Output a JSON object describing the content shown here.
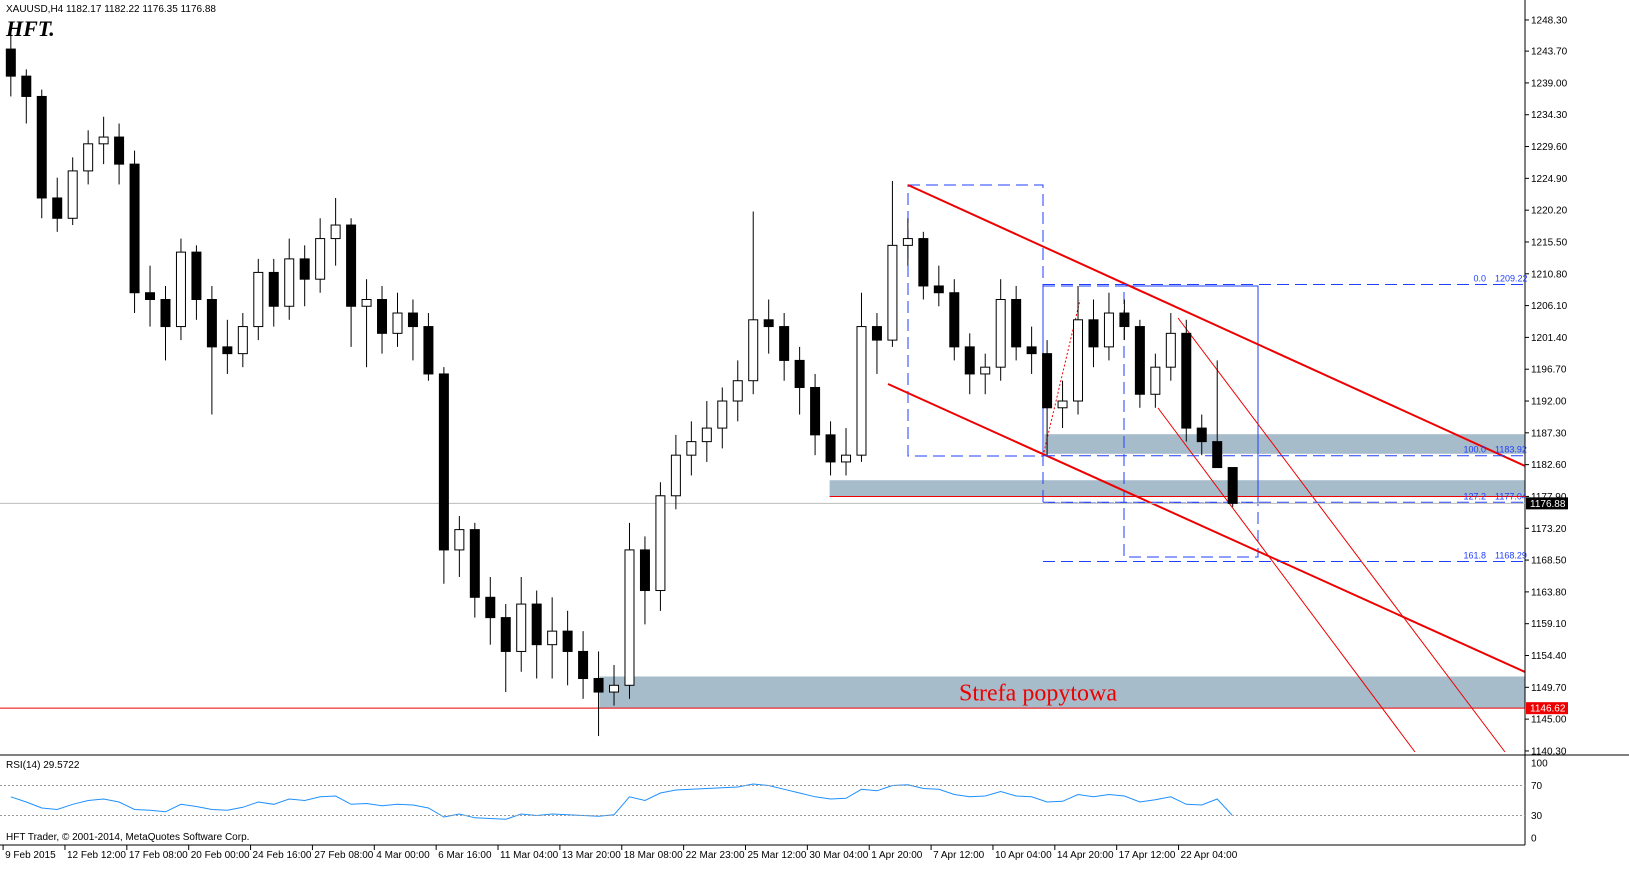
{
  "header": {
    "symbol_info": "XAUUSD,H4  1182.17 1182.22 1176.35 1176.88",
    "logo": "HFT."
  },
  "chart_data": [
    {
      "type": "candlestick",
      "x": [
        0.125,
        0.375,
        0.625,
        0.875,
        1.125,
        1.375,
        1.625,
        1.875,
        2.125,
        2.375,
        2.625,
        2.875,
        3.125,
        3.375,
        3.625,
        3.875,
        4.125,
        4.375,
        4.625,
        4.875,
        5.125,
        5.375,
        5.625,
        5.875,
        6.125,
        6.375,
        6.625,
        6.875,
        7.125,
        7.375,
        7.625,
        7.875,
        8.125,
        8.375,
        8.625,
        8.875,
        9.125,
        9.375,
        9.625,
        9.875,
        10.125,
        10.375,
        10.625,
        10.875,
        11.125,
        11.375,
        11.625,
        11.875,
        12.125,
        12.375,
        12.625,
        12.875,
        13.125,
        13.375,
        13.625,
        13.875,
        14.125,
        14.375,
        14.625,
        14.875,
        15.125,
        15.375,
        15.625,
        15.875,
        16.125,
        16.375,
        16.625,
        16.875,
        17.125,
        17.375,
        17.625,
        17.875,
        18.125,
        18.375,
        18.625,
        18.875,
        19.125,
        19.375,
        19.625,
        19.875
      ],
      "ohlc": [
        [
          1244,
          1247,
          1237,
          1240
        ],
        [
          1240,
          1241,
          1233,
          1237
        ],
        [
          1237,
          1238,
          1219,
          1222
        ],
        [
          1222,
          1225,
          1217,
          1219
        ],
        [
          1219,
          1228,
          1218,
          1226
        ],
        [
          1226,
          1232,
          1224,
          1230
        ],
        [
          1230,
          1234,
          1227,
          1231
        ],
        [
          1231,
          1233,
          1224,
          1227
        ],
        [
          1227,
          1229,
          1205,
          1208
        ],
        [
          1208,
          1212,
          1203,
          1207
        ],
        [
          1207,
          1209,
          1198,
          1203
        ],
        [
          1203,
          1216,
          1201,
          1214
        ],
        [
          1214,
          1215,
          1204,
          1207
        ],
        [
          1207,
          1209,
          1190,
          1200
        ],
        [
          1200,
          1204,
          1196,
          1199
        ],
        [
          1199,
          1205,
          1197,
          1203
        ],
        [
          1203,
          1213,
          1201,
          1211
        ],
        [
          1211,
          1213,
          1203,
          1206
        ],
        [
          1206,
          1216,
          1204,
          1213
        ],
        [
          1213,
          1215,
          1206,
          1210
        ],
        [
          1210,
          1219,
          1208,
          1216
        ],
        [
          1216,
          1222,
          1212,
          1218
        ],
        [
          1218,
          1219,
          1200,
          1206
        ],
        [
          1206,
          1210,
          1197,
          1207
        ],
        [
          1207,
          1209,
          1199,
          1202
        ],
        [
          1202,
          1208,
          1200,
          1205
        ],
        [
          1205,
          1207,
          1198,
          1203
        ],
        [
          1203,
          1205,
          1195,
          1196
        ],
        [
          1196,
          1197,
          1165,
          1170
        ],
        [
          1170,
          1175,
          1166,
          1173
        ],
        [
          1173,
          1174,
          1160,
          1163
        ],
        [
          1163,
          1166,
          1156,
          1160
        ],
        [
          1160,
          1162,
          1149,
          1155
        ],
        [
          1155,
          1166,
          1152,
          1162
        ],
        [
          1162,
          1164,
          1151,
          1156
        ],
        [
          1156,
          1163,
          1151,
          1158
        ],
        [
          1158,
          1161,
          1150,
          1155
        ],
        [
          1155,
          1158,
          1148,
          1151
        ],
        [
          1151,
          1155,
          1142.5,
          1149
        ],
        [
          1149,
          1153,
          1147,
          1150
        ],
        [
          1150,
          1174,
          1148,
          1170
        ],
        [
          1170,
          1172,
          1159,
          1164
        ],
        [
          1164,
          1180,
          1161,
          1178
        ],
        [
          1178,
          1187,
          1176,
          1184
        ],
        [
          1184,
          1189,
          1181,
          1186
        ],
        [
          1186,
          1192,
          1183,
          1188
        ],
        [
          1188,
          1194,
          1185,
          1192
        ],
        [
          1192,
          1198,
          1189,
          1195
        ],
        [
          1195,
          1220,
          1193,
          1204
        ],
        [
          1204,
          1207,
          1199,
          1203
        ],
        [
          1203,
          1205,
          1195,
          1198
        ],
        [
          1198,
          1200,
          1190,
          1194
        ],
        [
          1194,
          1196,
          1184,
          1187
        ],
        [
          1187,
          1189,
          1181,
          1183
        ],
        [
          1183,
          1188,
          1181,
          1184
        ],
        [
          1184,
          1208,
          1183,
          1203
        ],
        [
          1203,
          1205,
          1196,
          1201
        ],
        [
          1201,
          1224.5,
          1200,
          1215
        ],
        [
          1215,
          1219,
          1212,
          1216
        ],
        [
          1216,
          1217,
          1207,
          1209
        ],
        [
          1209,
          1212,
          1206,
          1208
        ],
        [
          1208,
          1210,
          1198,
          1200
        ],
        [
          1200,
          1202,
          1193,
          1196
        ],
        [
          1196,
          1199,
          1193,
          1197
        ],
        [
          1197,
          1210,
          1195,
          1207
        ],
        [
          1207,
          1209,
          1198,
          1200
        ],
        [
          1200,
          1203,
          1196,
          1199
        ],
        [
          1199,
          1201,
          1184,
          1191
        ],
        [
          1191,
          1195,
          1188,
          1192
        ],
        [
          1192,
          1209,
          1190,
          1204
        ],
        [
          1204,
          1207,
          1197,
          1200
        ],
        [
          1200,
          1208,
          1198,
          1205
        ],
        [
          1205,
          1207,
          1201,
          1203
        ],
        [
          1203,
          1204,
          1191,
          1193
        ],
        [
          1193,
          1199,
          1191,
          1197
        ],
        [
          1197,
          1205,
          1195,
          1202
        ],
        [
          1202,
          1204,
          1186,
          1188
        ],
        [
          1188,
          1190,
          1184,
          1186
        ],
        [
          1186,
          1198,
          1183,
          1182.17
        ],
        [
          1182.17,
          1182.22,
          1176.35,
          1176.88
        ]
      ],
      "xlim": [
        -0.05,
        24.6
      ],
      "ylim": [
        1139.7,
        1251.25
      ],
      "yticks": [
        {
          "value": 1248.3,
          "label": "1248.30"
        },
        {
          "value": 1243.7,
          "label": "1243.70"
        },
        {
          "value": 1239,
          "label": "1239.00"
        },
        {
          "value": 1234.3,
          "label": "1234.30"
        },
        {
          "value": 1229.6,
          "label": "1229.60"
        },
        {
          "value": 1224.9,
          "label": "1224.90"
        },
        {
          "value": 1220.2,
          "label": "1220.20"
        },
        {
          "value": 1215.5,
          "label": "1215.50"
        },
        {
          "value": 1210.8,
          "label": "1210.80"
        },
        {
          "value": 1206.1,
          "label": "1206.10"
        },
        {
          "value": 1201.4,
          "label": "1201.40"
        },
        {
          "value": 1196.7,
          "label": "1196.70"
        },
        {
          "value": 1192,
          "label": "1192.00"
        },
        {
          "value": 1187.3,
          "label": "1187.30"
        },
        {
          "value": 1182.6,
          "label": "1182.60"
        },
        {
          "value": 1177.9,
          "label": "1177.90"
        },
        {
          "value": 1173.2,
          "label": "1173.20"
        },
        {
          "value": 1168.5,
          "label": "1168.50"
        },
        {
          "value": 1163.8,
          "label": "1163.80"
        },
        {
          "value": 1159.1,
          "label": "1159.10"
        },
        {
          "value": 1154.4,
          "label": "1154.40"
        },
        {
          "value": 1149.7,
          "label": "1149.70"
        },
        {
          "value": 1145,
          "label": "1145.00"
        },
        {
          "value": 1140.3,
          "label": "1140.30"
        }
      ],
      "xticks": [
        {
          "value": 0,
          "label": "9 Feb 2015"
        },
        {
          "value": 1,
          "label": "12 Feb 12:00"
        },
        {
          "value": 2,
          "label": "17 Feb 08:00"
        },
        {
          "value": 3,
          "label": "20 Feb 00:00"
        },
        {
          "value": 4,
          "label": "24 Feb 16:00"
        },
        {
          "value": 5,
          "label": "27 Feb 08:00"
        },
        {
          "value": 6,
          "label": "4 Mar 00:00"
        },
        {
          "value": 7,
          "label": "6 Mar 16:00"
        },
        {
          "value": 8,
          "label": "11 Mar 04:00"
        },
        {
          "value": 9,
          "label": "13 Mar 20:00"
        },
        {
          "value": 10,
          "label": "18 Mar 08:00"
        },
        {
          "value": 11,
          "label": "22 Mar 23:00"
        },
        {
          "value": 12,
          "label": "25 Mar 12:00"
        },
        {
          "value": 13,
          "label": "30 Mar 04:00"
        },
        {
          "value": 14,
          "label": "1 Apr 20:00"
        },
        {
          "value": 15,
          "label": "7 Apr 12:00"
        },
        {
          "value": 16,
          "label": "10 Apr 04:00"
        },
        {
          "value": 17,
          "label": "14 Apr 20:00"
        },
        {
          "value": 18,
          "label": "17 Apr 12:00"
        },
        {
          "value": 19,
          "label": "22 Apr 04:00"
        }
      ],
      "last_price": {
        "value": 1176.88,
        "label": "1176.88"
      },
      "support_price": {
        "value": 1146.62,
        "label": "1146.62"
      },
      "zones": [
        {
          "from": 9.64,
          "low": 1146.62,
          "high": 1151.3
        },
        {
          "from": 13.36,
          "low": 1177.9,
          "high": 1180.3
        },
        {
          "from": 16.83,
          "low": 1184.2,
          "high": 1187.1
        }
      ],
      "zone_label": "Strefa popytowa",
      "fib_levels": [
        {
          "ratio": "0.0",
          "price": {
            "value": 1209.22,
            "label": "1209.22"
          }
        },
        {
          "ratio": "100.0",
          "price": {
            "value": 1183.92,
            "label": "1183.92"
          }
        },
        {
          "ratio": "127.2",
          "price": {
            "value": 1177.04,
            "label": "1177.04"
          }
        },
        {
          "ratio": "161.8",
          "price": {
            "value": 1168.29,
            "label": "1168.29"
          }
        }
      ]
    },
    {
      "type": "line",
      "title": "RSI(14) 29.5722",
      "color": "#1e90ff",
      "ylim": [
        0,
        100
      ],
      "yticks": [
        100,
        70,
        30,
        0
      ],
      "values": [
        55,
        48,
        40,
        38,
        45,
        50,
        52,
        48,
        38,
        37,
        35,
        45,
        42,
        38,
        37,
        41,
        48,
        45,
        52,
        50,
        55,
        56,
        45,
        46,
        43,
        45,
        44,
        40,
        28,
        32,
        27,
        26,
        25,
        32,
        30,
        32,
        31,
        30,
        29,
        31,
        55,
        50,
        60,
        64,
        65,
        66,
        67,
        68,
        72,
        70,
        65,
        60,
        55,
        52,
        53,
        65,
        63,
        70,
        71,
        66,
        65,
        58,
        55,
        56,
        62,
        56,
        55,
        48,
        49,
        58,
        55,
        58,
        56,
        48,
        51,
        55,
        45,
        44,
        52,
        29.5722
      ]
    }
  ],
  "footer": "HFT Trader, © 2001-2014, MetaQuotes Software Corp."
}
